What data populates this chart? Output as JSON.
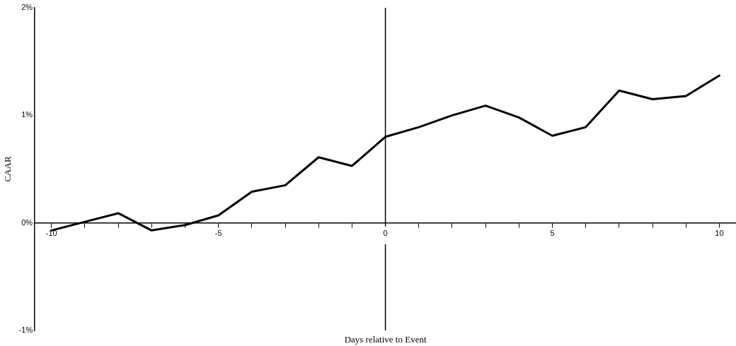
{
  "chart_data": {
    "type": "line",
    "xlabel": "Days relative to Event",
    "ylabel": "CAAR",
    "x": [
      -10,
      -9,
      -8,
      -7,
      -6,
      -5,
      -4,
      -3,
      -2,
      -1,
      0,
      1,
      2,
      3,
      4,
      5,
      6,
      7,
      8,
      9,
      10
    ],
    "series": [
      {
        "color": "#000000",
        "values": [
          -0.07,
          0.01,
          0.09,
          -0.07,
          -0.02,
          0.07,
          0.29,
          0.35,
          0.61,
          0.53,
          0.8,
          0.89,
          1.0,
          1.09,
          0.98,
          0.81,
          0.89,
          1.23,
          1.15,
          1.18,
          1.37
        ]
      }
    ],
    "xlim": [
      -10.5,
      10.5
    ],
    "xticks": [
      -10,
      {
        "value": -9,
        "label": null
      },
      {
        "value": -8,
        "label": null
      },
      {
        "value": -7,
        "label": null
      },
      {
        "value": -6,
        "label": null
      },
      -5,
      {
        "value": -4,
        "label": null
      },
      {
        "value": -3,
        "label": null
      },
      {
        "value": -2,
        "label": null
      },
      {
        "value": -1,
        "label": null
      },
      0,
      {
        "value": 1,
        "label": null
      },
      {
        "value": 2,
        "label": null
      },
      {
        "value": 3,
        "label": null
      },
      {
        "value": 4,
        "label": null
      },
      5,
      {
        "value": 6,
        "label": null
      },
      {
        "value": 7,
        "label": null
      },
      {
        "value": 8,
        "label": null
      },
      {
        "value": 9,
        "label": null
      },
      10
    ],
    "ylim": [
      -1,
      2
    ],
    "yticks": [
      {
        "value": -1,
        "label": "-1%"
      },
      {
        "value": 0,
        "label": "0%"
      },
      {
        "value": 1,
        "label": "1%"
      },
      {
        "value": 2,
        "label": "2%"
      }
    ],
    "ref_lines": [
      {
        "axis": "x",
        "value": 0,
        "color": "#000000"
      }
    ],
    "grid": false,
    "legend": false,
    "marker": "none",
    "line_style": "solid"
  }
}
